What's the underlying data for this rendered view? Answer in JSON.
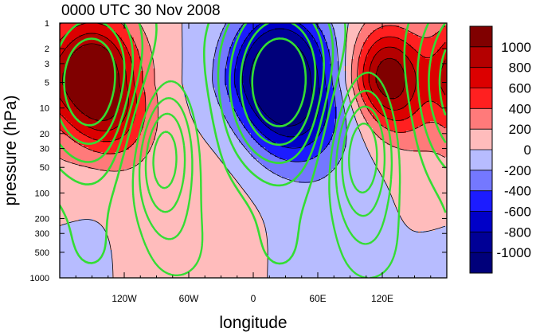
{
  "chart_data": {
    "type": "heatmap",
    "title": "0000 UTC 30 Nov 2008",
    "xlabel": "longitude",
    "ylabel": "pressure (hPa)",
    "x_axis": {
      "range": [
        -180,
        180
      ],
      "ticks": [
        -120,
        -60,
        0,
        60,
        120
      ],
      "tick_labels": [
        "120W",
        "60W",
        "0",
        "60E",
        "120E"
      ]
    },
    "y_axis": {
      "scale": "log",
      "reversed": true,
      "range": [
        1,
        1000
      ],
      "ticks": [
        1,
        2,
        3,
        5,
        10,
        20,
        30,
        50,
        100,
        200,
        300,
        500,
        1000
      ],
      "tick_labels": [
        "1",
        "2",
        "3",
        "5",
        "10",
        "20",
        "30",
        "50",
        "100",
        "200",
        "300",
        "500",
        "1000"
      ]
    },
    "colorbar": {
      "levels": [
        1000,
        800,
        600,
        400,
        200,
        0,
        -200,
        -400,
        -600,
        -800,
        -1000
      ],
      "labels": [
        "1000",
        "800",
        "600",
        "400",
        "200",
        "0",
        "-200",
        "-400",
        "-600",
        "-800",
        "-1000"
      ],
      "colors": [
        "#800000",
        "#b40000",
        "#dc0000",
        "#ff2020",
        "#ff7a7a",
        "#ffbcbc",
        "#b7bcff",
        "#7478ff",
        "#1c1cff",
        "#0000c8",
        "#000096",
        "#00007a"
      ]
    },
    "overlay_contour_color": "#33dd33",
    "shaded_pattern": {
      "positive_centers": [
        {
          "lon": -150,
          "p": 5,
          "value": 1000
        },
        {
          "lon": 125,
          "p": 5,
          "value": 1000
        }
      ],
      "negative_centers": [
        {
          "lon": 25,
          "p": 5,
          "value": -1000
        }
      ],
      "lower_pattern": [
        {
          "lon": -60,
          "p": 400,
          "value": 150
        },
        {
          "lon": 170,
          "p": 100,
          "value": 150
        },
        {
          "lon": -170,
          "p": 600,
          "value": -150
        },
        {
          "lon": 80,
          "p": 500,
          "value": -150
        }
      ]
    },
    "overlay_pattern": {
      "solid_centers": [
        {
          "lon": -150,
          "p": 5
        },
        {
          "lon": 25,
          "p": 5
        }
      ],
      "dashed_centers": [
        {
          "lon": -85,
          "p": 30
        },
        {
          "lon": 100,
          "p": 30
        }
      ]
    }
  }
}
